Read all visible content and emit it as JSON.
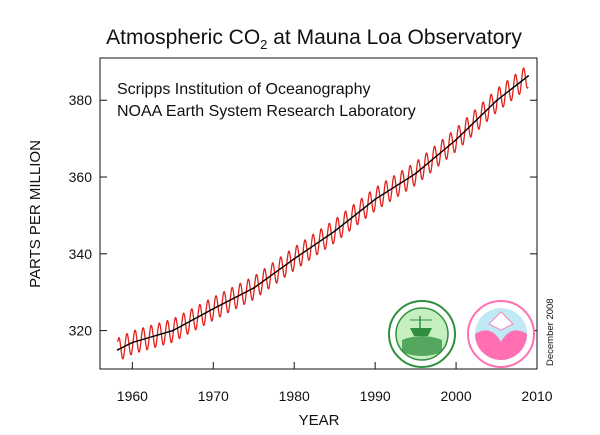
{
  "chart_data": {
    "type": "line",
    "title": {
      "prefix": "Atmospheric CO",
      "subscript": "2",
      "suffix": " at Mauna Loa Observatory"
    },
    "annotations": [
      "Scripps Institution of Oceanography",
      "NOAA Earth System Research Laboratory"
    ],
    "date_note": "December 2008",
    "xlabel": "YEAR",
    "ylabel": "PARTS PER MILLION",
    "xlim": [
      1956,
      2010
    ],
    "ylim": [
      310,
      391
    ],
    "xticks": [
      1960,
      1970,
      1980,
      1990,
      2000,
      2010
    ],
    "yticks": [
      320,
      340,
      360,
      380
    ],
    "grid": false,
    "series": [
      {
        "role": "monthly mean (seasonal cycle)",
        "color": "#e0201b",
        "seasonal_amplitude": 3,
        "x_start": 1958.2,
        "x_end": 2008.9
      },
      {
        "role": "annual trend",
        "color": "#000000",
        "x": [
          1958.2,
          1960,
          1965,
          1970,
          1975,
          1980,
          1985,
          1990,
          1995,
          2000,
          2005,
          2008.9
        ],
        "values": [
          315,
          316.9,
          320.0,
          325.7,
          331.1,
          338.7,
          345.9,
          354.2,
          360.9,
          369.7,
          379.9,
          386.3
        ]
      }
    ],
    "logos": [
      {
        "name": "scripps-logo",
        "colors": [
          "#2f8f3f",
          "#c6efc0",
          "#ffffff"
        ]
      },
      {
        "name": "noaa-logo",
        "colors": [
          "#ff6fb2",
          "#bfe9f5",
          "#ffffff"
        ]
      }
    ]
  }
}
